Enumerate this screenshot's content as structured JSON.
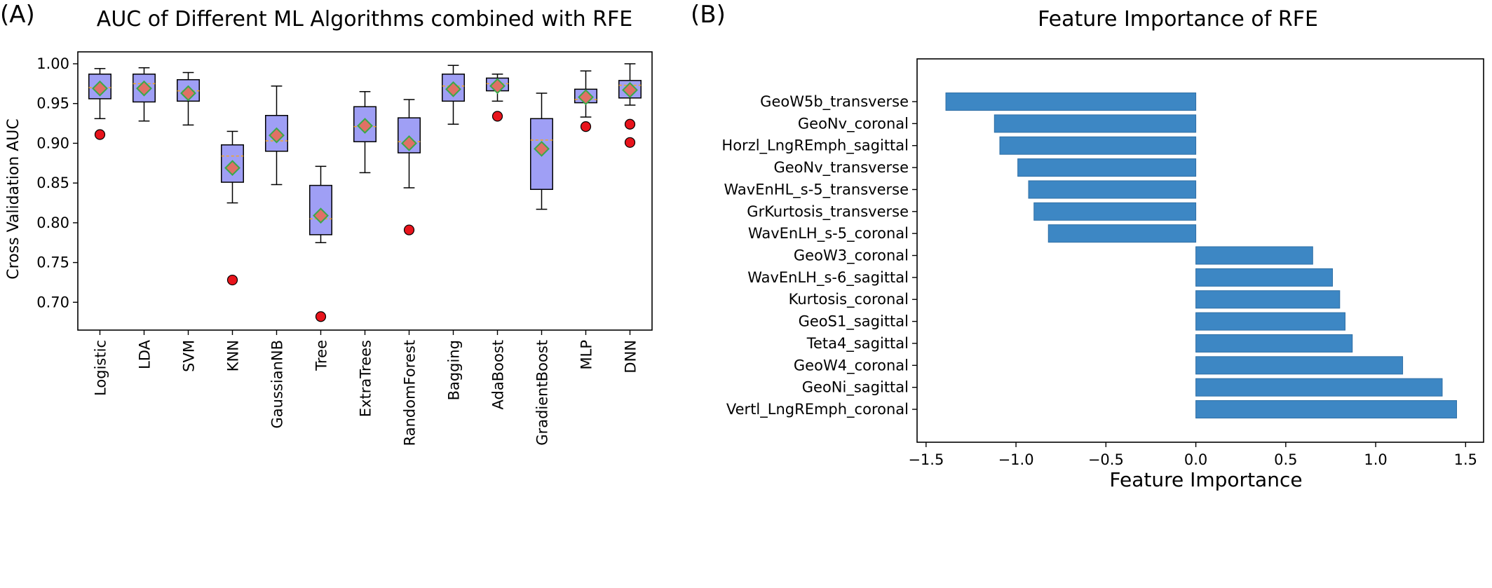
{
  "panels": {
    "a_label": "(A)",
    "b_label": "(B)"
  },
  "chart_data": [
    {
      "type": "boxplot",
      "title": "AUC of Different ML Algorithms combined with RFE",
      "xlabel": "",
      "ylabel": "Cross Validation AUC",
      "ylim": [
        0.665,
        1.015
      ],
      "yticks": [
        "0.70",
        "0.75",
        "0.80",
        "0.85",
        "0.90",
        "0.95",
        "1.00"
      ],
      "ytick_values": [
        0.7,
        0.75,
        0.8,
        0.85,
        0.9,
        0.95,
        1.0
      ],
      "box_color": "#9f9ff5",
      "median_color": "#f5a623",
      "mean_marker_color": "#e07065",
      "mean_marker_edge": "#3aa84a",
      "outlier_color": "#e8141c",
      "categories": [
        "Logistic",
        "LDA",
        "SVM",
        "KNN",
        "GaussianNB",
        "Tree",
        "ExtraTrees",
        "RandomForest",
        "Bagging",
        "AdaBoost",
        "GradientBoost",
        "MLP",
        "DNN"
      ],
      "boxes": [
        {
          "whislo": 0.931,
          "q1": 0.956,
          "med": 0.97,
          "q3": 0.987,
          "whishi": 0.994,
          "mean": 0.969,
          "fliers": [
            0.911
          ]
        },
        {
          "whislo": 0.928,
          "q1": 0.952,
          "med": 0.975,
          "q3": 0.987,
          "whishi": 0.995,
          "mean": 0.969,
          "fliers": []
        },
        {
          "whislo": 0.923,
          "q1": 0.953,
          "med": 0.966,
          "q3": 0.98,
          "whishi": 0.989,
          "mean": 0.963,
          "fliers": []
        },
        {
          "whislo": 0.825,
          "q1": 0.851,
          "med": 0.884,
          "q3": 0.898,
          "whishi": 0.915,
          "mean": 0.869,
          "fliers": [
            0.728
          ]
        },
        {
          "whislo": 0.848,
          "q1": 0.89,
          "med": 0.903,
          "q3": 0.935,
          "whishi": 0.972,
          "mean": 0.91,
          "fliers": []
        },
        {
          "whislo": 0.775,
          "q1": 0.785,
          "med": 0.805,
          "q3": 0.847,
          "whishi": 0.871,
          "mean": 0.809,
          "fliers": [
            0.682
          ]
        },
        {
          "whislo": 0.863,
          "q1": 0.902,
          "med": 0.921,
          "q3": 0.946,
          "whishi": 0.965,
          "mean": 0.922,
          "fliers": []
        },
        {
          "whislo": 0.844,
          "q1": 0.888,
          "med": 0.902,
          "q3": 0.932,
          "whishi": 0.955,
          "mean": 0.9,
          "fliers": [
            0.791
          ]
        },
        {
          "whislo": 0.924,
          "q1": 0.953,
          "med": 0.972,
          "q3": 0.987,
          "whishi": 0.998,
          "mean": 0.968,
          "fliers": []
        },
        {
          "whislo": 0.953,
          "q1": 0.966,
          "med": 0.975,
          "q3": 0.982,
          "whishi": 0.987,
          "mean": 0.972,
          "fliers": [
            0.934
          ]
        },
        {
          "whislo": 0.817,
          "q1": 0.842,
          "med": 0.904,
          "q3": 0.931,
          "whishi": 0.963,
          "mean": 0.893,
          "fliers": []
        },
        {
          "whislo": 0.933,
          "q1": 0.951,
          "med": 0.955,
          "q3": 0.968,
          "whishi": 0.991,
          "mean": 0.958,
          "fliers": [
            0.921
          ]
        },
        {
          "whislo": 0.948,
          "q1": 0.957,
          "med": 0.973,
          "q3": 0.979,
          "whishi": 1.0,
          "mean": 0.967,
          "fliers": [
            0.924,
            0.901
          ]
        }
      ]
    },
    {
      "type": "bar",
      "orientation": "horizontal",
      "title": "Feature Importance of RFE",
      "xlabel": "Feature Importance",
      "ylabel": "",
      "xlim": [
        -1.55,
        1.6
      ],
      "xticks": [
        "−1.5",
        "−1.0",
        "−0.5",
        "0.0",
        "0.5",
        "1.0",
        "1.5"
      ],
      "xtick_values": [
        -1.5,
        -1.0,
        -0.5,
        0.0,
        0.5,
        1.0,
        1.5
      ],
      "bar_color": "#3d87c4",
      "categories": [
        "GeoW5b_transverse",
        "GeoNv_coronal",
        "Horzl_LngREmph_sagittal",
        "GeoNv_transverse",
        "WavEnHL_s-5_transverse",
        "GrKurtosis_transverse",
        "WavEnLH_s-5_coronal",
        "GeoW3_coronal",
        "WavEnLH_s-6_sagittal",
        "Kurtosis_coronal",
        "GeoS1_sagittal",
        "Teta4_sagittal",
        "GeoW4_coronal",
        "GeoNi_sagittal",
        "Vertl_LngREmph_coronal"
      ],
      "values": [
        -1.39,
        -1.12,
        -1.09,
        -0.99,
        -0.93,
        -0.9,
        -0.82,
        0.65,
        0.76,
        0.8,
        0.83,
        0.87,
        1.15,
        1.37,
        1.45
      ]
    }
  ]
}
